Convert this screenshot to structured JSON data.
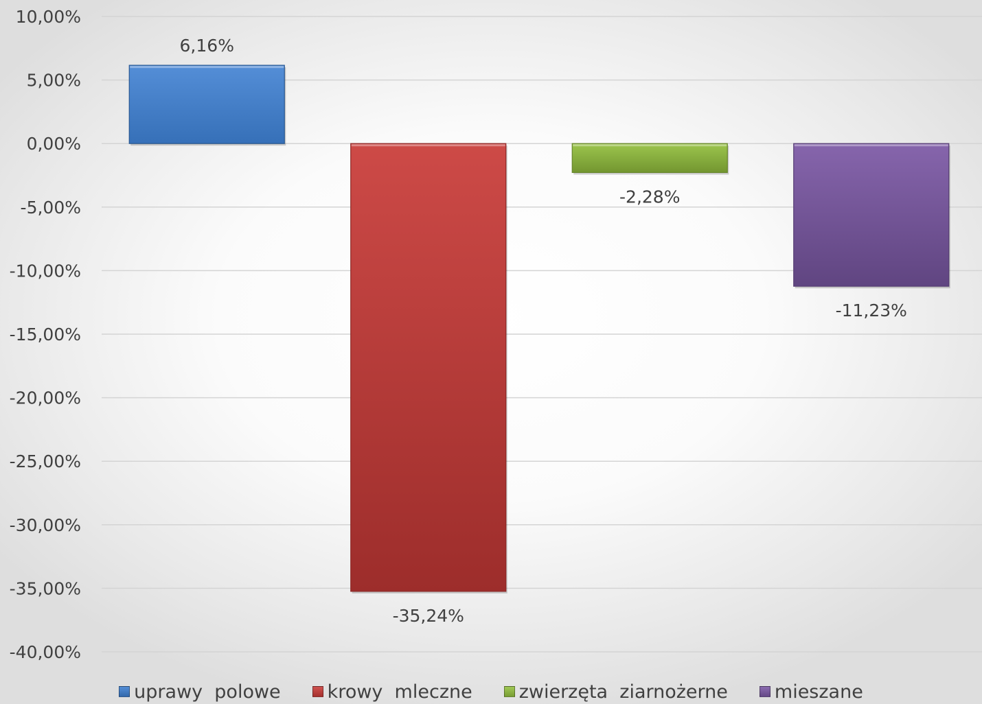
{
  "chart_data": {
    "type": "bar",
    "categories": [
      "uprawy  polowe",
      "krowy  mleczne",
      "zwierzęta  ziarnożerne",
      "mieszane"
    ],
    "values": [
      6.16,
      -35.24,
      -2.28,
      -11.23
    ],
    "data_labels": [
      "6,16%",
      "-35,24%",
      "-2,28%",
      "-11,23%"
    ],
    "colors": [
      "#3d7fd1",
      "#c93a37",
      "#93c03e",
      "#7b58a5"
    ],
    "ylim": [
      -40,
      10
    ],
    "yticks": [
      10,
      5,
      0,
      -5,
      -10,
      -15,
      -20,
      -25,
      -30,
      -35,
      -40
    ],
    "ytick_labels": [
      "10,00%",
      "5,00%",
      "0,00%",
      "-5,00%",
      "-10,00%",
      "-15,00%",
      "-20,00%",
      "-25,00%",
      "-30,00%",
      "-35,00%",
      "-40,00%"
    ],
    "grid": true,
    "legend_position": "bottom",
    "title": "",
    "xlabel": "",
    "ylabel": ""
  }
}
